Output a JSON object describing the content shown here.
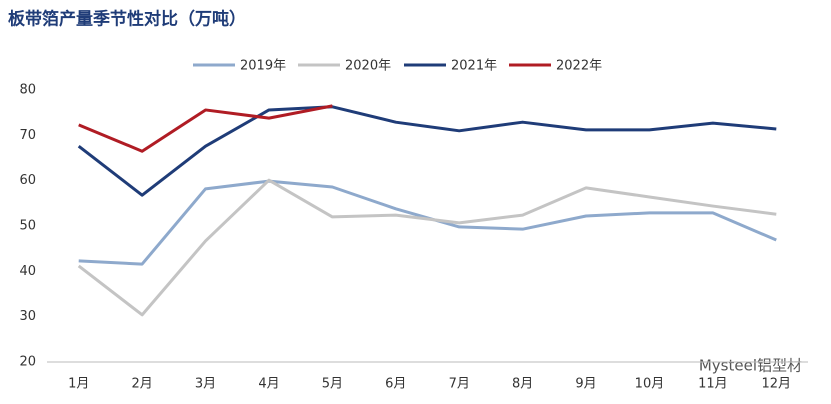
{
  "chart_data": {
    "type": "line",
    "title": "板带箔产量季节性对比（万吨）",
    "categories": [
      "1月",
      "2月",
      "3月",
      "4月",
      "5月",
      "6月",
      "7月",
      "8月",
      "9月",
      "10月",
      "11月",
      "12月"
    ],
    "series": [
      {
        "name": "2019年",
        "color": "#8ea9cc",
        "values": [
          42.3,
          41.6,
          58.2,
          59.9,
          58.6,
          53.8,
          49.8,
          49.3,
          52.2,
          52.9,
          52.9,
          46.9
        ]
      },
      {
        "name": "2020年",
        "color": "#c4c4c4",
        "values": [
          41.2,
          30.4,
          46.7,
          60.1,
          52.0,
          52.4,
          50.7,
          52.4,
          58.4,
          56.4,
          54.4,
          52.6
        ]
      },
      {
        "name": "2021年",
        "color": "#1f3c78",
        "values": [
          67.6,
          56.8,
          67.6,
          75.6,
          76.3,
          72.9,
          71.0,
          72.9,
          71.2,
          71.2,
          72.7,
          71.4
        ]
      },
      {
        "name": "2022年",
        "color": "#b01c24",
        "values": [
          72.3,
          66.5,
          75.6,
          73.8,
          76.5,
          null,
          null,
          null,
          null,
          null,
          null,
          null
        ]
      }
    ],
    "ylim": [
      20,
      80
    ],
    "yticks": [
      20,
      30,
      40,
      50,
      60,
      70,
      80
    ],
    "grid": false,
    "legend": "top",
    "annotation": "Mysteel铝型材"
  }
}
